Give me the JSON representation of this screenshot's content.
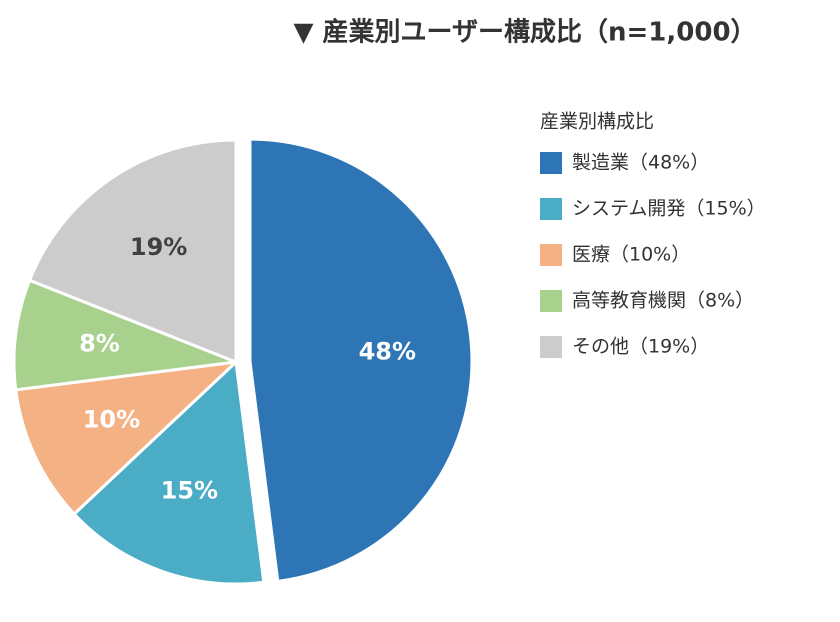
{
  "chart_data": {
    "type": "pie",
    "title": "▼ 産業別ユーザー構成比（n=1,000）",
    "legend_title": "産業別構成比",
    "categories": [
      "製造業（48%）",
      "システム開発（15%）",
      "医療（10%）",
      "高等教育機関（8%）",
      "その他（19%）"
    ],
    "values": [
      48,
      15,
      10,
      8,
      19
    ],
    "value_labels": [
      "48%",
      "15%",
      "10%",
      "8%",
      "19%"
    ],
    "colors": [
      "#2e75b6",
      "#4bacc6",
      "#f4b183",
      "#a9d18e",
      "#cccccc"
    ],
    "label_colors": [
      "#ffffff",
      "#ffffff",
      "#ffffff",
      "#ffffff",
      "#404040"
    ],
    "legend": "right"
  }
}
